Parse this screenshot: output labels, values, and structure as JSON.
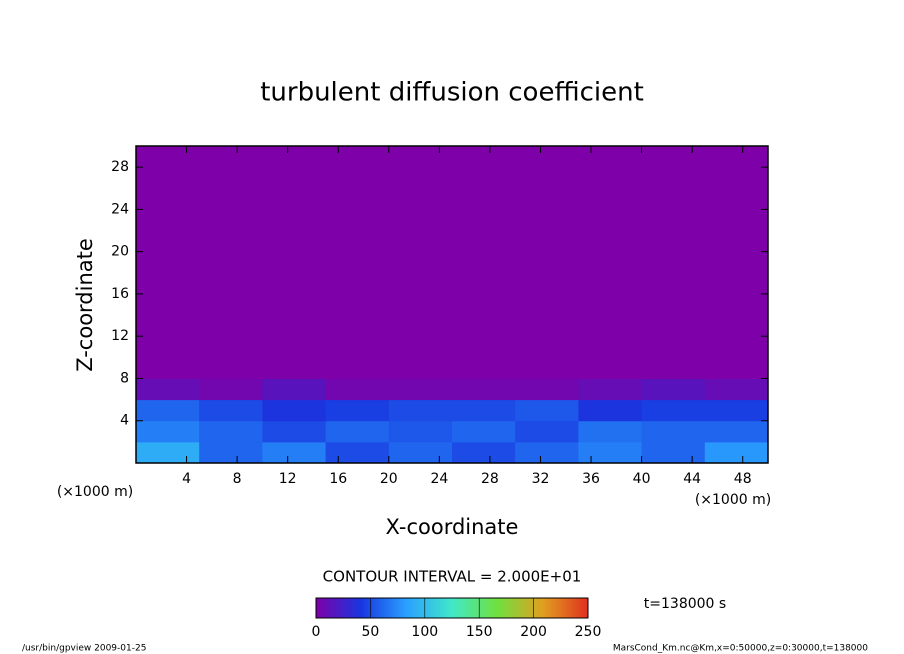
{
  "chart_data": {
    "type": "heatmap",
    "title": "turbulent diffusion coefficient",
    "xlabel": "X-coordinate",
    "ylabel": "Z-coordinate",
    "x_unit": "(×1000 m)",
    "xlim": [
      0,
      50
    ],
    "ylim": [
      0,
      30
    ],
    "xticks": [
      4,
      8,
      12,
      16,
      20,
      24,
      28,
      32,
      36,
      40,
      44,
      48
    ],
    "yticks": [
      4,
      8,
      12,
      16,
      20,
      24,
      28
    ],
    "x_edges": [
      0,
      5,
      10,
      15,
      20,
      25,
      30,
      35,
      40,
      45,
      50
    ],
    "z_edges": [
      0,
      2,
      4,
      6,
      8,
      30
    ],
    "field": [
      [
        90,
        60,
        70,
        50,
        60,
        50,
        60,
        70,
        60,
        80
      ],
      [
        70,
        60,
        50,
        60,
        55,
        60,
        50,
        65,
        60,
        60
      ],
      [
        60,
        50,
        40,
        45,
        50,
        50,
        55,
        40,
        45,
        45
      ],
      [
        10,
        5,
        15,
        5,
        5,
        5,
        5,
        10,
        15,
        10
      ],
      [
        0,
        0,
        0,
        0,
        0,
        0,
        0,
        0,
        0,
        0
      ]
    ],
    "colormap": [
      "#7e00a8",
      "#1836e0",
      "#2aa0ff",
      "#40e8c8",
      "#70e040",
      "#e0a020",
      "#e03020"
    ],
    "contour_interval": "CONTOUR INTERVAL = 2.000E+01",
    "clim": [
      0,
      250
    ],
    "cticks": [
      0,
      50,
      100,
      150,
      200,
      250
    ],
    "time_label": "t=138000 s",
    "footer_left": "/usr/bin/gpview   2009-01-25",
    "footer_right": "MarsCond_Km.nc@Km,x=0:50000,z=0:30000,t=138000"
  }
}
